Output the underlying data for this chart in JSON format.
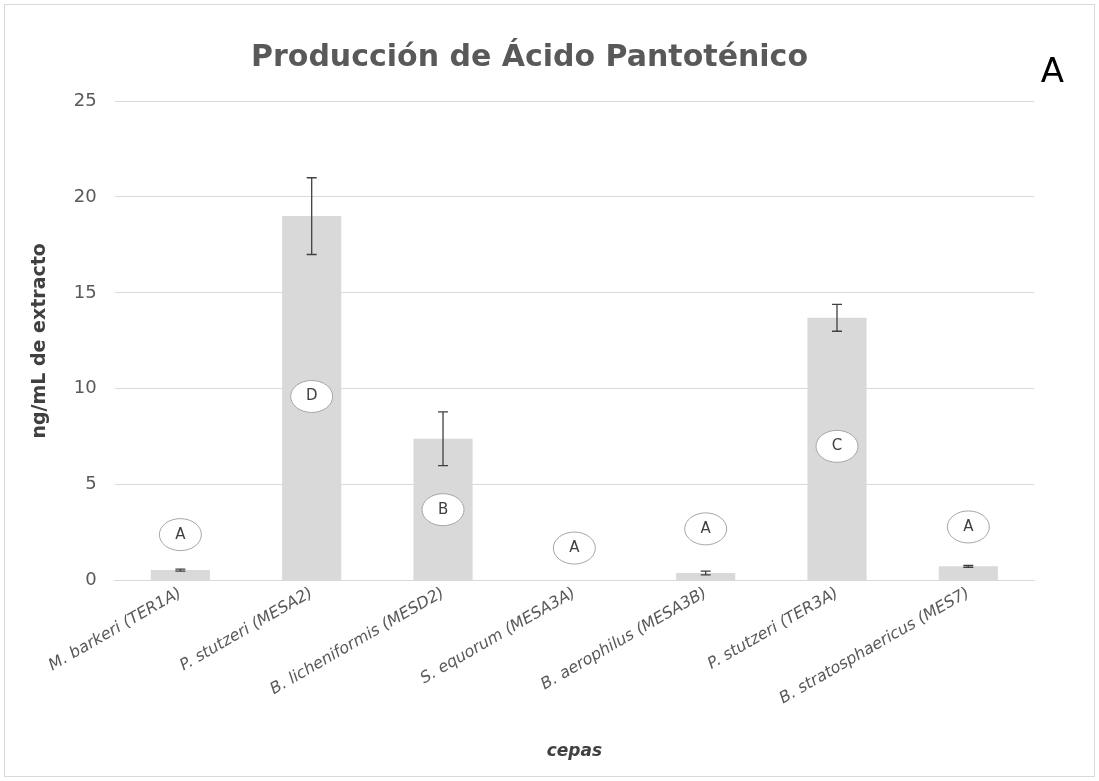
{
  "chart_data": {
    "type": "bar",
    "title": "Producción de Ácido Pantoténico",
    "xlabel": "cepas",
    "ylabel": "ng/mL de extracto",
    "categories": [
      "M. barkeri (TER1A)",
      "P. stutzeri (MESA2)",
      "B. licheniformis (MESD2)",
      "S. equorum (MESA3A)",
      "B. aerophilus (MESA3B)",
      "P. stutzeri (TER3A)",
      "B. stratosphaericus (MES7)"
    ],
    "values": [
      0.55,
      19.0,
      7.4,
      0,
      0.4,
      13.7,
      0.75
    ],
    "errors": [
      0.05,
      2.0,
      1.4,
      null,
      0.1,
      0.7,
      0.05
    ],
    "color": "#d9d9d9",
    "ylim": [
      0,
      25
    ],
    "yticks": [
      0,
      5,
      10,
      15,
      20,
      25
    ],
    "grid": "y",
    "legend": false,
    "annotations": [
      {
        "text": "A",
        "x": "M. barkeri (TER1A)",
        "y": 2.4
      },
      {
        "text": "D",
        "x": "P. stutzeri (MESA2)",
        "y": 9.6
      },
      {
        "text": "B",
        "x": "B. licheniformis (MESD2)",
        "y": 3.7
      },
      {
        "text": "A",
        "x": "S. equorum (MESA3A)",
        "y": 1.7
      },
      {
        "text": "A",
        "x": "B. aerophilus (MESA3B)",
        "y": 2.7
      },
      {
        "text": "C",
        "x": "P. stutzeri (TER3A)",
        "y": 7.0
      },
      {
        "text": "A",
        "x": "B. stratosphaericus (MES7)",
        "y": 2.8
      },
      "A"
    ]
  }
}
